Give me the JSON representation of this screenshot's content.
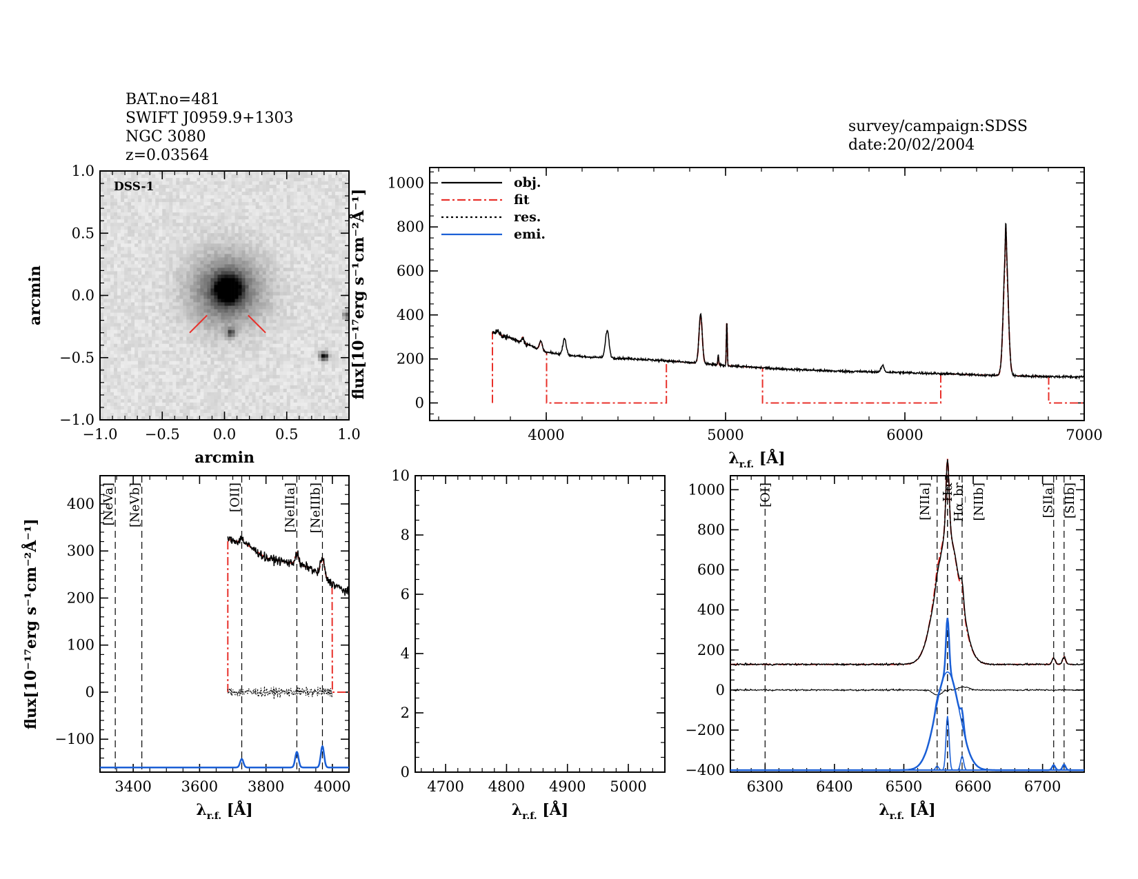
{
  "header": {
    "left_lines": [
      "BAT.no=481",
      "SWIFT J0959.9+1303",
      "NGC 3080",
      "z=0.03564"
    ],
    "right_lines": [
      "survey/campaign:SDSS",
      "date:20/02/2004"
    ]
  },
  "colors": {
    "obj": "#000000",
    "fit": "#e8302a",
    "res": "#000000",
    "emi": "#1a5fd6",
    "frame": "#000000"
  },
  "chart_data": [
    {
      "id": "image",
      "type": "heatmap",
      "title": "DSS-1",
      "xlabel": "arcmin",
      "ylabel": "arcmin",
      "xlim": [
        -1.0,
        1.0
      ],
      "ylim": [
        -1.0,
        1.0
      ],
      "xticks": [
        "−1.0",
        "−0.5",
        "0.0",
        "0.5",
        "1.0"
      ],
      "yticks": [
        "−1.0",
        "−0.5",
        "0.0",
        "0.5",
        "1.0"
      ],
      "sources": [
        {
          "x": 0.03,
          "y": 0.05,
          "peak": 1.0,
          "sigma": 0.07
        },
        {
          "x": 0.02,
          "y": 0.04,
          "peak": 0.55,
          "sigma": 0.2
        },
        {
          "x": 0.05,
          "y": -0.3,
          "peak": 0.5,
          "sigma": 0.025
        },
        {
          "x": 0.8,
          "y": -0.49,
          "peak": 0.85,
          "sigma": 0.025
        },
        {
          "x": 0.98,
          "y": -0.16,
          "peak": 0.55,
          "sigma": 0.02
        }
      ],
      "markers": [
        {
          "x1": -0.28,
          "y1": -0.3,
          "x2": -0.14,
          "y2": -0.16
        },
        {
          "x1": 0.19,
          "y1": -0.16,
          "x2": 0.33,
          "y2": -0.3
        }
      ]
    },
    {
      "id": "full",
      "type": "line",
      "xlabel": "λr.f. [Å]",
      "ylabel": "flux[10⁻¹⁷erg s⁻¹cm⁻²Å⁻¹]",
      "xlim": [
        3350,
        7000
      ],
      "ylim": [
        -80,
        1070
      ],
      "xticks": [
        4000,
        5000,
        6000,
        7000
      ],
      "yticks": [
        0,
        200,
        400,
        600,
        800,
        1000
      ],
      "legend": {
        "position": "top-left",
        "entries": [
          "obj.",
          "fit",
          "res.",
          "emi."
        ]
      },
      "continuum_knots": [
        [
          3700,
          320
        ],
        [
          3800,
          295
        ],
        [
          3900,
          265
        ],
        [
          4000,
          230
        ],
        [
          4200,
          210
        ],
        [
          4500,
          200
        ],
        [
          4700,
          190
        ],
        [
          5000,
          170
        ],
        [
          5300,
          155
        ],
        [
          5600,
          145
        ],
        [
          5900,
          140
        ],
        [
          6200,
          133
        ],
        [
          6500,
          125
        ],
        [
          6800,
          120
        ],
        [
          7000,
          118
        ]
      ],
      "lines": [
        {
          "x": 3727,
          "amp": 15,
          "sigma": 6
        },
        {
          "x": 3869,
          "amp": 25,
          "sigma": 6
        },
        {
          "x": 3970,
          "amp": 40,
          "sigma": 8
        },
        {
          "x": 4102,
          "amp": 75,
          "sigma": 9
        },
        {
          "x": 4340,
          "amp": 125,
          "sigma": 10
        },
        {
          "x": 4861,
          "amp": 225,
          "sigma": 9
        },
        {
          "x": 4959,
          "amp": 45,
          "sigma": 2.5
        },
        {
          "x": 5007,
          "amp": 210,
          "sigma": 2.5
        },
        {
          "x": 5876,
          "amp": 30,
          "sigma": 8
        },
        {
          "x": 6563,
          "amp": 580,
          "sigma": 13
        },
        {
          "x": 6563,
          "amp": 120,
          "sigma": 2.5
        }
      ],
      "fit_windows": [
        [
          3700,
          4000
        ],
        [
          4670,
          5205
        ],
        [
          6200,
          6800
        ]
      ],
      "fit_drops": [
        3700,
        4000,
        4670,
        5205,
        6200,
        6800
      ]
    },
    {
      "id": "blue",
      "type": "line",
      "xlabel": "λr.f. [Å]",
      "ylabel": "flux[10⁻¹⁷erg s⁻¹cm⁻²Å⁻¹]",
      "xlim": [
        3300,
        4050
      ],
      "ylim": [
        -170,
        460
      ],
      "xticks": [
        3400,
        3600,
        3800,
        4000
      ],
      "yticks": [
        -100,
        0,
        100,
        200,
        300,
        400
      ],
      "data_range": [
        3685,
        4050
      ],
      "fit_range": [
        3685,
        4000
      ],
      "emission_offset": -160,
      "line_markers": [
        {
          "x": 3346,
          "label": "[NeVa]",
          "color": "red"
        },
        {
          "x": 3426,
          "label": "[NeVb]",
          "color": "red"
        },
        {
          "x": 3727,
          "label": "[OII]",
          "color": "red"
        },
        {
          "x": 3893,
          "label": "[NeIIIa]",
          "color": "red"
        },
        {
          "x": 3970,
          "label": "[NeIIIb]",
          "color": "black"
        }
      ],
      "continuum_knots": [
        [
          3685,
          325
        ],
        [
          3740,
          315
        ],
        [
          3800,
          285
        ],
        [
          3870,
          275
        ],
        [
          3930,
          265
        ],
        [
          3990,
          235
        ],
        [
          4050,
          210
        ]
      ],
      "lines": [
        {
          "x": 3727,
          "amp": 10,
          "sigma": 5
        },
        {
          "x": 3893,
          "amp": 25,
          "sigma": 5
        },
        {
          "x": 3970,
          "amp": 40,
          "sigma": 6
        }
      ],
      "emission": [
        {
          "x": 3727,
          "amp": 18,
          "sigma": 5
        },
        {
          "x": 3893,
          "amp": 33,
          "sigma": 5
        },
        {
          "x": 3970,
          "amp": 45,
          "sigma": 5
        }
      ]
    },
    {
      "id": "middle",
      "type": "line",
      "xlabel": "λr.f. [Å]",
      "xlim": [
        4650,
        5060
      ],
      "ylim": [
        0,
        10
      ],
      "xticks": [
        4700,
        4800,
        4900,
        5000
      ],
      "yticks": [
        0,
        2,
        4,
        6,
        8,
        10
      ]
    },
    {
      "id": "red",
      "type": "line",
      "xlabel": "λr.f. [Å]",
      "xlim": [
        6250,
        6760
      ],
      "ylim": [
        -410,
        1070
      ],
      "xticks": [
        6300,
        6400,
        6500,
        6600,
        6700
      ],
      "yticks": [
        -400,
        -200,
        0,
        200,
        400,
        600,
        800,
        1000
      ],
      "emission_offset": -400,
      "line_markers": [
        {
          "x": 6300,
          "label": "[OI]",
          "color": "red"
        },
        {
          "x": 6548,
          "label": "[NIIa]",
          "color": "black"
        },
        {
          "x": 6563,
          "label": "Hα",
          "color": "black"
        },
        {
          "x": 6563,
          "label": "Hα_br",
          "color": "black"
        },
        {
          "x": 6584,
          "label": "[NIIb]",
          "color": "black"
        },
        {
          "x": 6716,
          "label": "[SIIa]",
          "color": "black"
        },
        {
          "x": 6731,
          "label": "[SIIb]",
          "color": "black"
        }
      ],
      "continuum": 128,
      "emission": [
        {
          "x": 6563,
          "amp": 490,
          "sigma": 17
        },
        {
          "x": 6563,
          "amp": 270,
          "sigma": 2.2
        },
        {
          "x": 6548,
          "amp": 20,
          "sigma": 2.2
        },
        {
          "x": 6584,
          "amp": 70,
          "sigma": 2.2
        },
        {
          "x": 6716,
          "amp": 25,
          "sigma": 2.2
        },
        {
          "x": 6731,
          "amp": 28,
          "sigma": 2.2
        }
      ]
    }
  ]
}
